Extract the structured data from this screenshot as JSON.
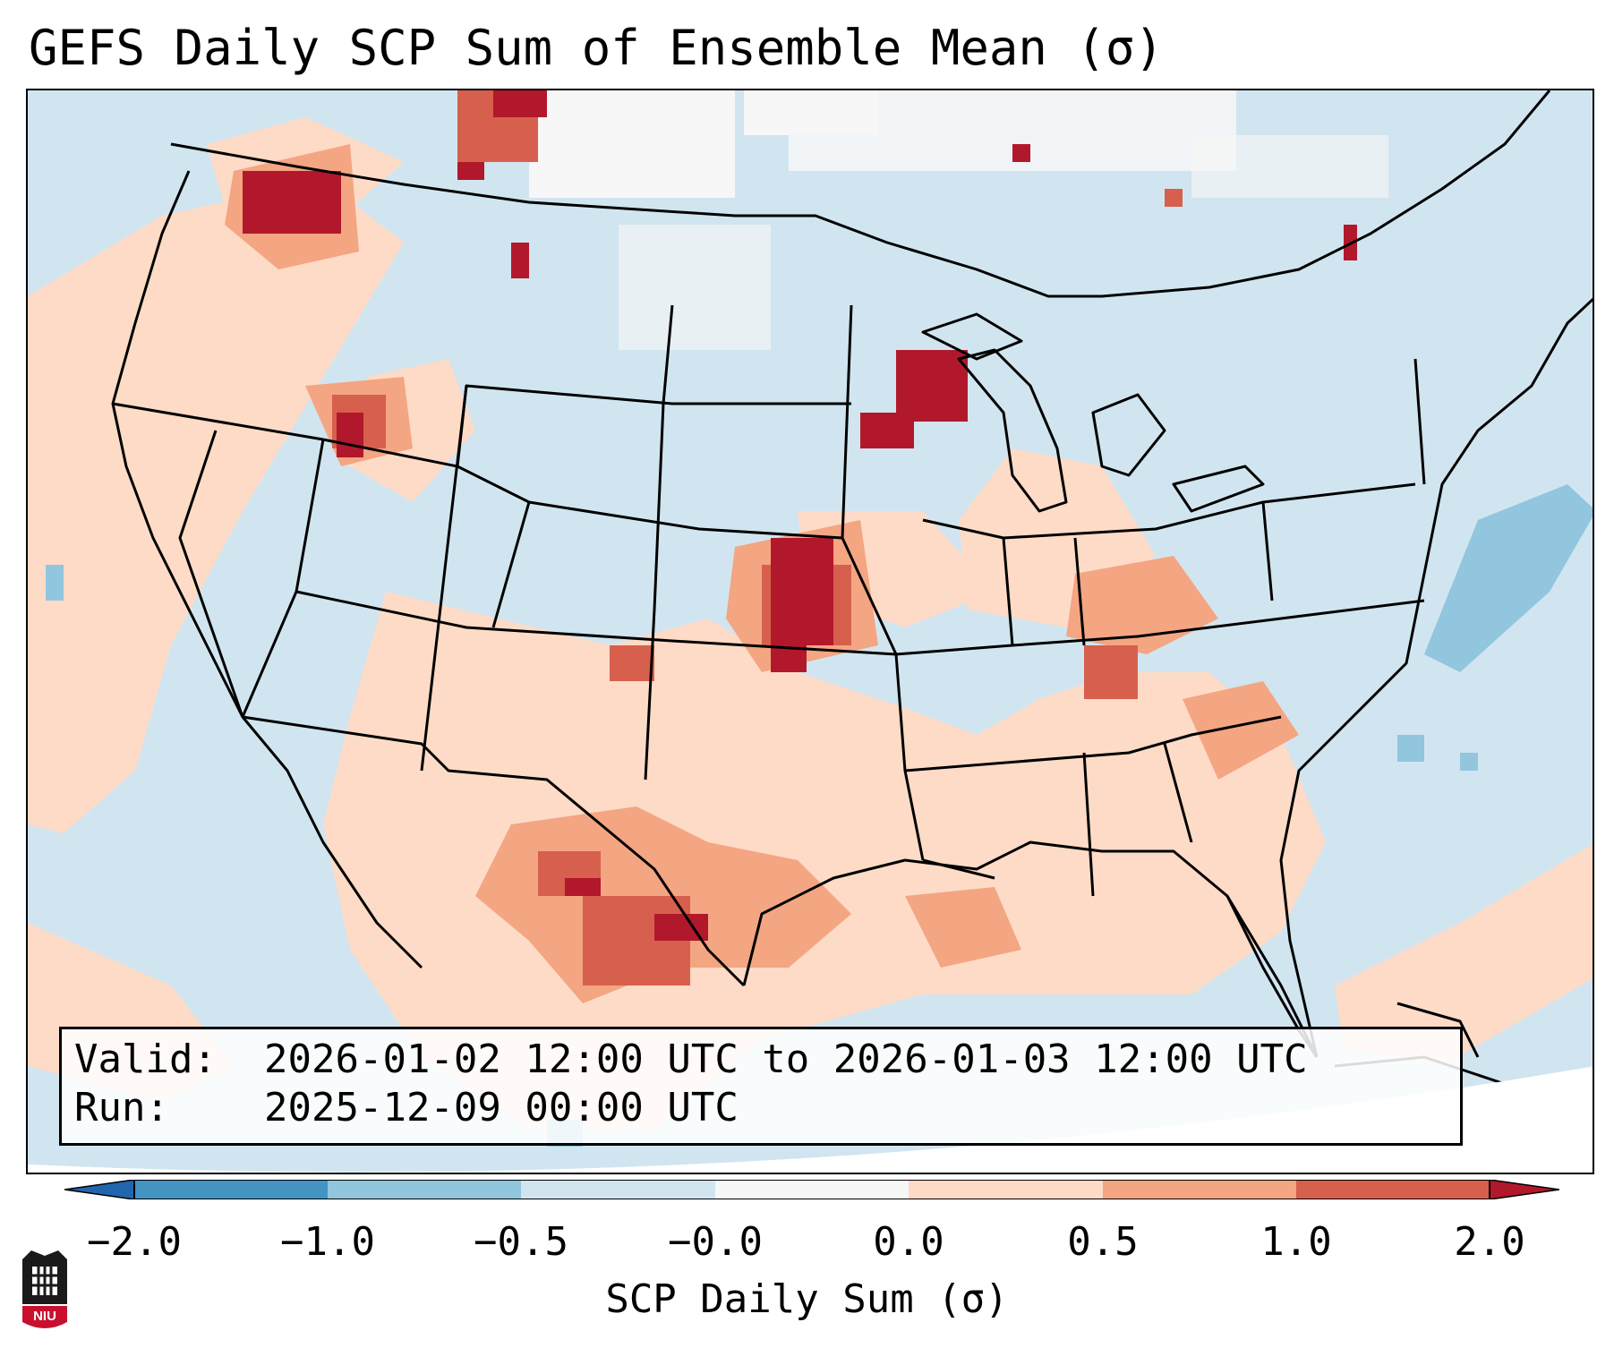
{
  "title": "GEFS Daily SCP Sum of Ensemble Mean (σ)",
  "info": {
    "valid_label": "Valid:",
    "valid_value": "2026-01-02 12:00 UTC to 2026-01-03 12:00 UTC",
    "run_label": "Run:",
    "run_value": "2025-12-09 00:00 UTC"
  },
  "colorbar": {
    "label": "SCP Daily Sum (σ)",
    "ticks": [
      "−2.0",
      "−1.0",
      "−0.5",
      "−0.0",
      "0.0",
      "0.5",
      "1.0",
      "2.0"
    ],
    "colors": [
      "#4393c3",
      "#92c5de",
      "#d1e5f0",
      "#f7f7f7",
      "#fddbc7",
      "#f4a582",
      "#d6604d"
    ],
    "under_color": "#2166ac",
    "over_color": "#b2182b"
  },
  "map_colors": {
    "base": "#d1e5f0",
    "light_red": "#fddbc7",
    "mid_red": "#f4a582",
    "dark_red": "#d6604d",
    "max_red": "#b2182b",
    "light_blue": "#92c5de",
    "white": "#f7f7f7",
    "land_lines": "#000000"
  },
  "logo": {
    "text": "NIU",
    "color": "#c8102e"
  }
}
